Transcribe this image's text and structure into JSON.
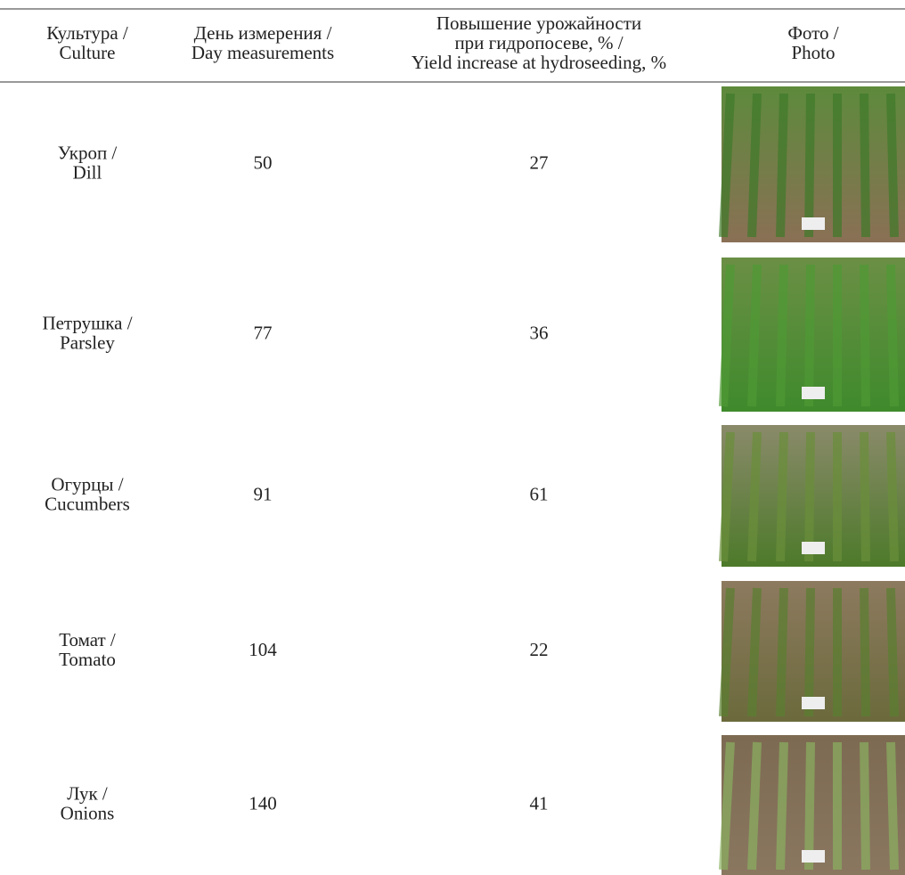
{
  "table": {
    "header": [
      [
        "Культура /",
        "Culture"
      ],
      [
        "День измерения /",
        "Day measurements"
      ],
      [
        "Повышение урожайности",
        "при гидропосеве, % /",
        "Yield increase at hydroseeding, %"
      ],
      [
        "Фото /",
        "Photo"
      ]
    ],
    "rows": [
      [
        [
          "Укроп /",
          "Dill"
        ],
        50,
        27
      ],
      [
        [
          "Петрушка /",
          "Parsley"
        ],
        77,
        36
      ],
      [
        [
          "Огурцы /",
          "Cucumbers"
        ],
        91,
        61
      ],
      [
        [
          "Томат /",
          "Tomato"
        ],
        104,
        22
      ],
      [
        [
          "Лук /",
          "Onions"
        ],
        140,
        41
      ]
    ]
  }
}
